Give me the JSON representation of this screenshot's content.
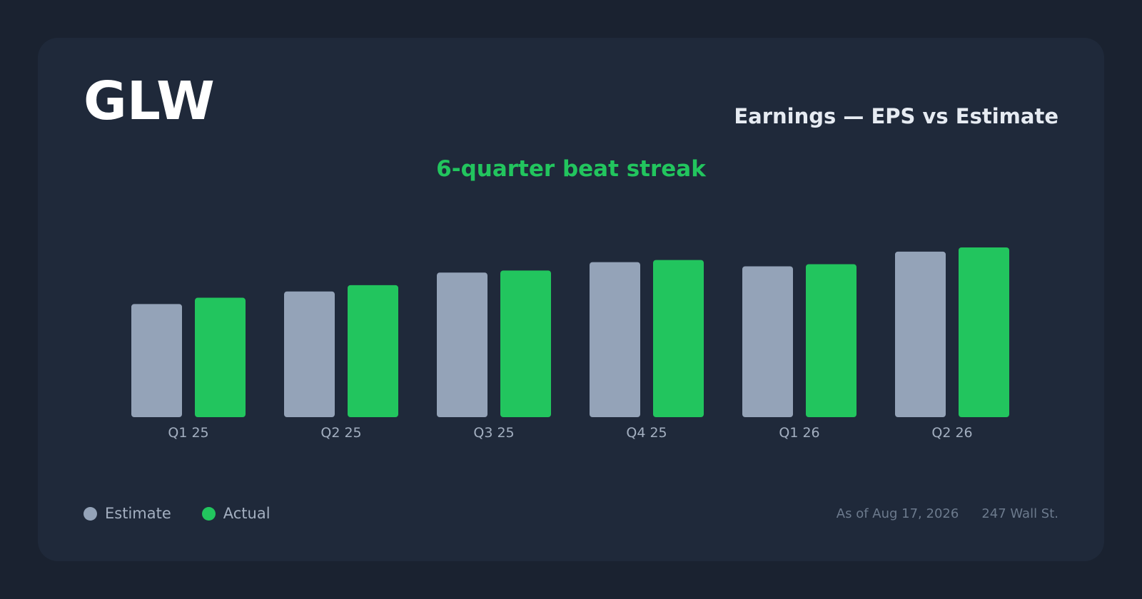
{
  "header": {
    "ticker": "GLW",
    "title": "Earnings — EPS vs Estimate",
    "subtitle": "6-quarter beat streak"
  },
  "legend": {
    "estimate": "Estimate",
    "actual": "Actual"
  },
  "footer": {
    "as_of": "As of Aug 17, 2026",
    "source": "247 Wall St."
  },
  "colors": {
    "estimate": "#94a3b8",
    "actual": "#22c55e",
    "subtitle": "#22c55e"
  },
  "chart_data": {
    "type": "bar",
    "categories": [
      "Q1 25",
      "Q2 25",
      "Q3 25",
      "Q4 25",
      "Q1 26",
      "Q2 26"
    ],
    "series": [
      {
        "name": "Estimate",
        "values": [
          0.54,
          0.6,
          0.69,
          0.74,
          0.72,
          0.79
        ]
      },
      {
        "name": "Actual",
        "values": [
          0.57,
          0.63,
          0.7,
          0.75,
          0.73,
          0.81
        ]
      }
    ],
    "title": "Earnings — EPS vs Estimate",
    "xlabel": "",
    "ylabel": "",
    "ylim": [
      0,
      0.81
    ],
    "grid": false,
    "legend": "bottom-left"
  }
}
